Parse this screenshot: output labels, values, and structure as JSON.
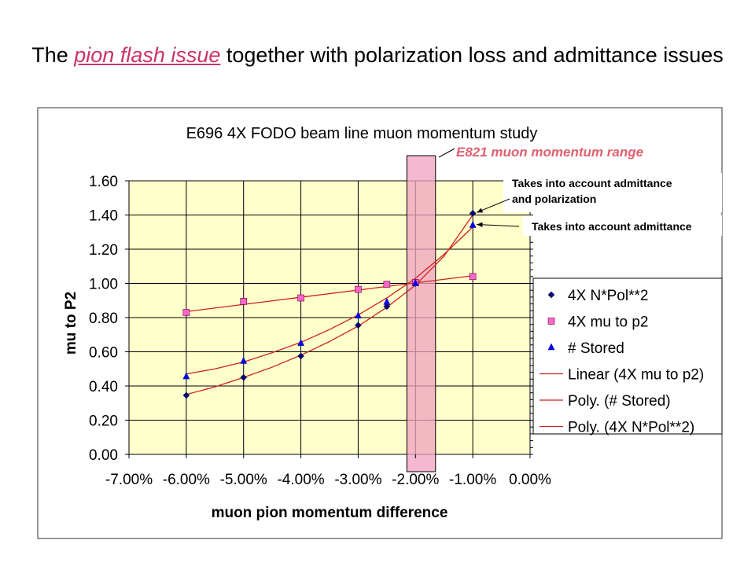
{
  "slide": {
    "title_prefix": "The ",
    "title_highlight": "pion flash issue",
    "title_suffix": " together with polarization loss and admittance issues"
  },
  "chart_data": {
    "type": "scatter",
    "title": "E696 4X FODO beam line muon momentum study",
    "xlabel": "muon pion momentum difference",
    "ylabel": "mu to P2",
    "xlim": [
      -0.07,
      0.0
    ],
    "ylim": [
      0.0,
      1.6
    ],
    "x_ticks": [
      "-7.00%",
      "-6.00%",
      "-5.00%",
      "-4.00%",
      "-3.00%",
      "-2.00%",
      "-1.00%",
      "0.00%"
    ],
    "y_ticks": [
      "0.00",
      "0.20",
      "0.40",
      "0.60",
      "0.80",
      "1.00",
      "1.20",
      "1.40",
      "1.60"
    ],
    "grid": true,
    "plot_background": "#ffffcc",
    "legend_position": "right",
    "series": [
      {
        "name": "4X N*Pol**2",
        "marker": "diamond",
        "color": "#000080",
        "x": [
          -0.06,
          -0.05,
          -0.04,
          -0.03,
          -0.025,
          -0.02,
          -0.01
        ],
        "y": [
          0.345,
          0.45,
          0.575,
          0.755,
          0.865,
          1.0,
          1.41
        ]
      },
      {
        "name": "4X mu to p2",
        "marker": "square",
        "color": "#ff66cc",
        "x": [
          -0.06,
          -0.05,
          -0.04,
          -0.03,
          -0.025,
          -0.02,
          -0.01
        ],
        "y": [
          0.83,
          0.895,
          0.915,
          0.965,
          0.995,
          1.005,
          1.04
        ]
      },
      {
        "name": "# Stored",
        "marker": "triangle",
        "color": "#0000ff",
        "x": [
          -0.06,
          -0.05,
          -0.04,
          -0.03,
          -0.025,
          -0.02,
          -0.01
        ],
        "y": [
          0.455,
          0.545,
          0.65,
          0.81,
          0.89,
          1.0,
          1.34
        ]
      }
    ],
    "trendlines": [
      {
        "name": "Linear (4X mu to p2)",
        "color": "#cc2222",
        "x": [
          -0.06,
          -0.01
        ],
        "y": [
          0.835,
          1.045
        ]
      },
      {
        "name": "Poly. (# Stored)",
        "color": "#cc2222",
        "x": [
          -0.06,
          -0.055,
          -0.05,
          -0.045,
          -0.04,
          -0.035,
          -0.03,
          -0.025,
          -0.02,
          -0.015,
          -0.01
        ],
        "y": [
          0.47,
          0.5,
          0.54,
          0.595,
          0.655,
          0.73,
          0.815,
          0.915,
          1.03,
          1.17,
          1.33
        ]
      },
      {
        "name": "Poly. (4X N*Pol**2)",
        "color": "#cc2222",
        "x": [
          -0.06,
          -0.055,
          -0.05,
          -0.045,
          -0.04,
          -0.035,
          -0.03,
          -0.025,
          -0.02,
          -0.015,
          -0.01
        ],
        "y": [
          0.35,
          0.395,
          0.45,
          0.51,
          0.58,
          0.66,
          0.75,
          0.86,
          0.99,
          1.16,
          1.4
        ]
      }
    ],
    "band": {
      "label": "E821 muon momentum range",
      "x0": -0.0215,
      "x1": -0.0165,
      "color": "#f0a0c0"
    },
    "annotations": [
      {
        "text_lines": [
          "Takes into account admittance",
          "and polarization"
        ],
        "target_x": -0.01,
        "target_y": 1.41
      },
      {
        "text_lines": [
          "Takes into account admittance"
        ],
        "target_x": -0.01,
        "target_y": 1.34
      }
    ]
  }
}
